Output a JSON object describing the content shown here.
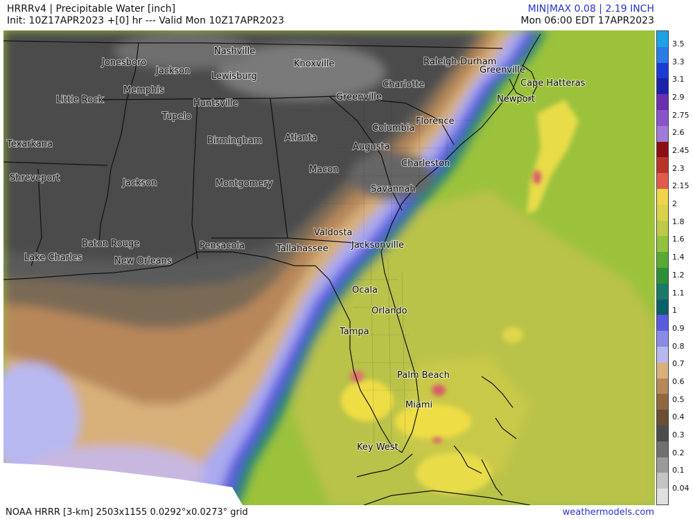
{
  "header": {
    "title": "HRRRv4 | Precipitable Water [inch]",
    "init_line": "Init: 10Z17APR2023 +[0] hr --- Valid Mon 10Z17APR2023",
    "minmax": "MIN|MAX 0.08 | 2.19 INCH",
    "valid_local": "Mon 06:00 EDT 17APR2023"
  },
  "footer": {
    "model_info": "NOAA HRRR [3-km] 2503x1155 0.0292°x0.0273° grid",
    "site": "weathermodels.com"
  },
  "legend": {
    "ticks": [
      "3.5",
      "3.3",
      "3.1",
      "2.9",
      "2.75",
      "2.6",
      "2.45",
      "2.3",
      "2.15",
      "2",
      "1.8",
      "1.6",
      "1.4",
      "1.2",
      "1.1",
      "1",
      "0.9",
      "0.8",
      "0.7",
      "0.6",
      "0.5",
      "0.4",
      "0.3",
      "0.2",
      "0.1",
      "0.04"
    ],
    "colors": [
      "#1ba3e6",
      "#2a7be8",
      "#1b3bd6",
      "#1a22a8",
      "#6b2fb0",
      "#8a55c8",
      "#a07ad4",
      "#8b0e14",
      "#b8342a",
      "#e05a4e",
      "#f0d54a",
      "#d9d24a",
      "#bdc94a",
      "#92c23e",
      "#58aa34",
      "#2e8e3a",
      "#1a7a6a",
      "#0c5f6a",
      "#5a5adf",
      "#8a8ae6",
      "#b8b8f0",
      "#d7b07a",
      "#b7875a",
      "#8f6840",
      "#6b4f32",
      "#4d4d4d",
      "#707070",
      "#9a9a9a",
      "#c4c4c4",
      "#e0e0e0"
    ]
  },
  "cities": [
    {
      "name": "Jonesboro"
    },
    {
      "name": "Jackson"
    },
    {
      "name": "Memphis"
    },
    {
      "name": "Little Rock"
    },
    {
      "name": "Nashville"
    },
    {
      "name": "Lewisburg"
    },
    {
      "name": "Knoxville"
    },
    {
      "name": "Huntsville"
    },
    {
      "name": "Tupelo"
    },
    {
      "name": "Birmingham"
    },
    {
      "name": "Atlanta"
    },
    {
      "name": "Texarkana"
    },
    {
      "name": "Shreveport"
    },
    {
      "name": "Jackson"
    },
    {
      "name": "Montgomery"
    },
    {
      "name": "Macon"
    },
    {
      "name": "Raleigh-Durham"
    },
    {
      "name": "Greenville"
    },
    {
      "name": "Charlotte"
    },
    {
      "name": "Greenville"
    },
    {
      "name": "Cape Hatteras"
    },
    {
      "name": "Newport"
    },
    {
      "name": "Columbia"
    },
    {
      "name": "Florence"
    },
    {
      "name": "Augusta"
    },
    {
      "name": "Charleston"
    },
    {
      "name": "Savannah"
    },
    {
      "name": "Valdosta"
    },
    {
      "name": "Jacksonville"
    },
    {
      "name": "Baton Rouge"
    },
    {
      "name": "Pensacola"
    },
    {
      "name": "Tallahassee"
    },
    {
      "name": "Lake Charles"
    },
    {
      "name": "New Orleans"
    },
    {
      "name": "Ocala"
    },
    {
      "name": "Orlando"
    },
    {
      "name": "Tampa"
    },
    {
      "name": "Palm Beach"
    },
    {
      "name": "Miami"
    },
    {
      "name": "Key West"
    }
  ]
}
